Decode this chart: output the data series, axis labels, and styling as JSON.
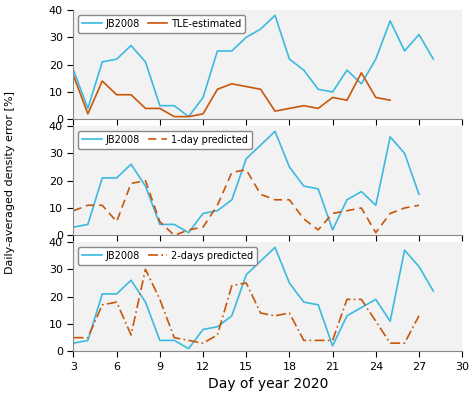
{
  "x": [
    3,
    4,
    5,
    6,
    7,
    8,
    9,
    10,
    11,
    12,
    13,
    14,
    15,
    16,
    17,
    18,
    19,
    20,
    21,
    22,
    23,
    24,
    25,
    26,
    27,
    28,
    29
  ],
  "jb2008_1": [
    18,
    4,
    21,
    22,
    27,
    21,
    5,
    5,
    1,
    8,
    25,
    25,
    30,
    33,
    38,
    22,
    18,
    11,
    10,
    18,
    13,
    22,
    36,
    25,
    31,
    22,
    null
  ],
  "tle_estimated": [
    16,
    2,
    14,
    9,
    9,
    4,
    4,
    1,
    1,
    2,
    11,
    13,
    12,
    11,
    3,
    4,
    5,
    4,
    8,
    7,
    17,
    8,
    7,
    null,
    null,
    null,
    null
  ],
  "jb2008_2": [
    3,
    4,
    21,
    21,
    26,
    18,
    4,
    4,
    1,
    8,
    9,
    13,
    28,
    33,
    38,
    25,
    18,
    17,
    2,
    13,
    16,
    11,
    36,
    30,
    15,
    null,
    null
  ],
  "pred_1day": [
    9,
    11,
    11,
    5,
    19,
    20,
    5,
    0,
    2,
    3,
    11,
    23,
    24,
    15,
    13,
    13,
    6,
    2,
    8,
    9,
    10,
    1,
    8,
    10,
    11,
    null,
    null
  ],
  "jb2008_3": [
    3,
    4,
    21,
    21,
    26,
    18,
    4,
    4,
    1,
    8,
    9,
    13,
    28,
    33,
    38,
    25,
    18,
    17,
    2,
    13,
    16,
    19,
    11,
    37,
    31,
    22,
    null
  ],
  "pred_2day": [
    5,
    5,
    17,
    18,
    6,
    30,
    19,
    5,
    4,
    3,
    6,
    24,
    25,
    14,
    13,
    14,
    4,
    4,
    4,
    19,
    19,
    11,
    3,
    3,
    13,
    null,
    null
  ],
  "cyan_color": "#3CB9E0",
  "orange_color": "#C8560A",
  "bg_color": "#F2F2F2",
  "ylabel": "Daily-averaged density error [%]",
  "xlabel": "Day of year 2020",
  "xlim": [
    3,
    30
  ],
  "ylim": [
    0,
    40
  ],
  "yticks": [
    0,
    10,
    20,
    30,
    40
  ],
  "xticks": [
    3,
    6,
    9,
    12,
    15,
    18,
    21,
    24,
    27,
    30
  ],
  "legend1": [
    "JB2008",
    "TLE-estimated"
  ],
  "legend2": [
    "JB2008",
    "1-day predicted"
  ],
  "legend3": [
    "JB2008",
    "2-days predicted"
  ],
  "lw": 1.2,
  "xlabel_fontsize": 10,
  "ylabel_fontsize": 8,
  "tick_fontsize": 8,
  "legend_fontsize": 7
}
